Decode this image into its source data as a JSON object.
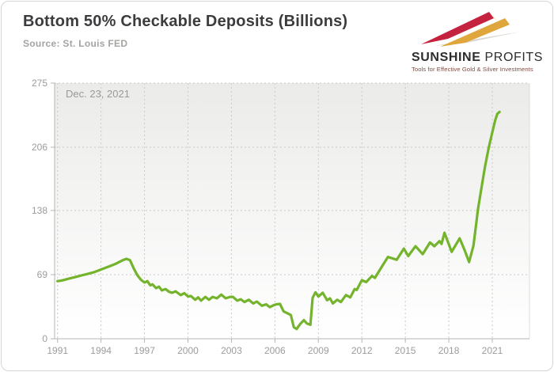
{
  "header": {
    "title": "Bottom 50% Checkable Deposits (Billions)",
    "source": "Source: St. Louis FED"
  },
  "logo": {
    "name_bold": "SUNSHINE",
    "name_light": "PROFITS",
    "tagline": "Tools for Effective Gold & Silver Investments",
    "arrow_red": "#c52240",
    "arrow_gold": "#dba winner",
    "colors": {
      "red": "#c52240",
      "gold": "#dfa63c",
      "shadow": "#dcd8d1",
      "text": "#2d2d2d",
      "tagline": "#7d4a41"
    }
  },
  "chart_data": {
    "type": "line",
    "title": "Bottom 50% Checkable Deposits (Billions)",
    "source": "Source: St. Louis FED",
    "annotation": "Dec. 23, 2021",
    "legend": "none",
    "grid": "dashed",
    "x_ticks": [
      1991,
      1994,
      1997,
      2000,
      2003,
      2006,
      2009,
      2012,
      2015,
      2018,
      2021
    ],
    "y_ticks": [
      0,
      69,
      138,
      206,
      275
    ],
    "xlim": [
      1991,
      2023.6
    ],
    "ylim": [
      0,
      275
    ],
    "line_color": "#74b42c",
    "axis_color": "#b5b5b3",
    "grid_color": "#c9c9c7",
    "plot_bg_top": "#ebebe9",
    "plot_bg_bottom": "#ffffff",
    "series": [
      {
        "name": "Bottom 50% checkable deposits",
        "points": [
          [
            1991,
            62
          ],
          [
            1991.25,
            62.5
          ],
          [
            1991.5,
            63.5
          ],
          [
            1991.75,
            64.5
          ],
          [
            1992,
            65.5
          ],
          [
            1992.25,
            66.5
          ],
          [
            1992.5,
            67.5
          ],
          [
            1992.75,
            68.5
          ],
          [
            1993,
            69.5
          ],
          [
            1993.25,
            70.5
          ],
          [
            1993.5,
            71.5
          ],
          [
            1993.75,
            73
          ],
          [
            1994,
            74.5
          ],
          [
            1994.25,
            76
          ],
          [
            1994.5,
            77.5
          ],
          [
            1994.75,
            79
          ],
          [
            1995,
            80.5
          ],
          [
            1995.25,
            82.5
          ],
          [
            1995.5,
            84.5
          ],
          [
            1995.75,
            86
          ],
          [
            1996,
            84.5
          ],
          [
            1996.25,
            76
          ],
          [
            1996.5,
            68.5
          ],
          [
            1996.75,
            63.5
          ],
          [
            1997,
            60.5
          ],
          [
            1997.2,
            62
          ],
          [
            1997.4,
            57.5
          ],
          [
            1997.55,
            58.5
          ],
          [
            1997.8,
            54.5
          ],
          [
            1998,
            56
          ],
          [
            1998.2,
            52
          ],
          [
            1998.45,
            53.5
          ],
          [
            1998.7,
            50.5
          ],
          [
            1998.9,
            49.5
          ],
          [
            1999.15,
            51
          ],
          [
            1999.5,
            47
          ],
          [
            1999.75,
            49
          ],
          [
            2000,
            45.5
          ],
          [
            2000.2,
            46
          ],
          [
            2000.5,
            42
          ],
          [
            2000.7,
            44.5
          ],
          [
            2000.9,
            41
          ],
          [
            2001.2,
            45
          ],
          [
            2001.45,
            42
          ],
          [
            2001.7,
            45
          ],
          [
            2002,
            43.5
          ],
          [
            2002.3,
            47.5
          ],
          [
            2002.6,
            43.5
          ],
          [
            2002.9,
            45
          ],
          [
            2003.1,
            45
          ],
          [
            2003.4,
            41
          ],
          [
            2003.65,
            42.5
          ],
          [
            2003.9,
            39.5
          ],
          [
            2004.2,
            42
          ],
          [
            2004.5,
            38
          ],
          [
            2004.75,
            40
          ],
          [
            2005.1,
            35.5
          ],
          [
            2005.4,
            37
          ],
          [
            2005.65,
            34
          ],
          [
            2005.9,
            36
          ],
          [
            2006.1,
            37
          ],
          [
            2006.35,
            37.5
          ],
          [
            2006.6,
            29.5
          ],
          [
            2006.85,
            27.5
          ],
          [
            2007.1,
            25.5
          ],
          [
            2007.3,
            12.5
          ],
          [
            2007.5,
            10.5
          ],
          [
            2007.75,
            16
          ],
          [
            2008,
            20
          ],
          [
            2008.2,
            16.5
          ],
          [
            2008.45,
            15
          ],
          [
            2008.6,
            44
          ],
          [
            2008.8,
            50
          ],
          [
            2009,
            45.5
          ],
          [
            2009.3,
            49.5
          ],
          [
            2009.6,
            41.5
          ],
          [
            2009.8,
            43.5
          ],
          [
            2010,
            38
          ],
          [
            2010.3,
            42
          ],
          [
            2010.55,
            39.5
          ],
          [
            2010.9,
            47
          ],
          [
            2011.2,
            44.5
          ],
          [
            2011.5,
            53.5
          ],
          [
            2011.65,
            52.5
          ],
          [
            2012,
            63
          ],
          [
            2012.3,
            61
          ],
          [
            2012.7,
            67.5
          ],
          [
            2012.9,
            65.5
          ],
          [
            2013.4,
            78
          ],
          [
            2013.8,
            88
          ],
          [
            2014.4,
            85
          ],
          [
            2014.9,
            97
          ],
          [
            2015.2,
            89
          ],
          [
            2015.7,
            99.5
          ],
          [
            2016.2,
            91
          ],
          [
            2016.7,
            103.5
          ],
          [
            2017,
            99.5
          ],
          [
            2017.35,
            105
          ],
          [
            2017.5,
            102
          ],
          [
            2017.7,
            114
          ],
          [
            2018.2,
            93.5
          ],
          [
            2018.75,
            108
          ],
          [
            2019.1,
            95
          ],
          [
            2019.4,
            82.5
          ],
          [
            2019.7,
            100
          ],
          [
            2019.9,
            125
          ],
          [
            2020,
            138
          ],
          [
            2020.25,
            162
          ],
          [
            2020.5,
            185
          ],
          [
            2020.75,
            205
          ],
          [
            2021,
            222
          ],
          [
            2021.2,
            235
          ],
          [
            2021.35,
            242
          ],
          [
            2021.5,
            244
          ]
        ]
      }
    ]
  }
}
